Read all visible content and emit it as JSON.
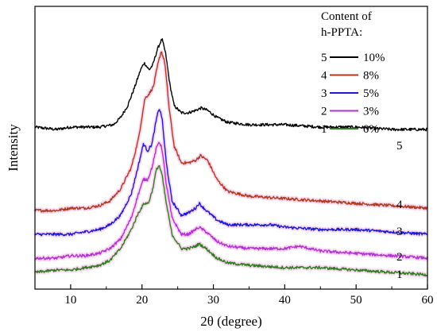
{
  "chart_data": {
    "type": "line",
    "title": "",
    "xlabel": "2θ (degree)",
    "ylabel": "Intensity",
    "xlim": [
      5,
      60
    ],
    "xticks": [
      10,
      20,
      30,
      40,
      50,
      60
    ],
    "xtick_labels": [
      "10",
      "20",
      "30",
      "40",
      "50",
      "60"
    ],
    "yticks_shown": false,
    "grid": false,
    "legend": {
      "position": "top-right",
      "title_lines": [
        "Content of",
        "h-PPTA:"
      ]
    },
    "series": [
      {
        "name": "10%",
        "legend_index": "5",
        "curve_label": "5",
        "color": "#000000",
        "points": [
          [
            5,
            0.62
          ],
          [
            8,
            0.61
          ],
          [
            10,
            0.62
          ],
          [
            12,
            0.62
          ],
          [
            14,
            0.62
          ],
          [
            16,
            0.63
          ],
          [
            17,
            0.66
          ],
          [
            18,
            0.71
          ],
          [
            19,
            0.79
          ],
          [
            19.8,
            0.86
          ],
          [
            20.3,
            0.89
          ],
          [
            21.0,
            0.86
          ],
          [
            21.5,
            0.88
          ],
          [
            22.2,
            0.95
          ],
          [
            22.8,
            0.99
          ],
          [
            23.3,
            0.93
          ],
          [
            23.9,
            0.8
          ],
          [
            24.5,
            0.71
          ],
          [
            25.5,
            0.68
          ],
          [
            26.5,
            0.68
          ],
          [
            27.5,
            0.69
          ],
          [
            28.3,
            0.7
          ],
          [
            29.2,
            0.69
          ],
          [
            30.5,
            0.66
          ],
          [
            32,
            0.64
          ],
          [
            35,
            0.63
          ],
          [
            40,
            0.63
          ],
          [
            45,
            0.62
          ],
          [
            50,
            0.62
          ],
          [
            55,
            0.61
          ],
          [
            60,
            0.61
          ]
        ]
      },
      {
        "name": "8%",
        "legend_index": "4",
        "curve_label": "4",
        "color": "#b23a1f",
        "points": [
          [
            5,
            0.27
          ],
          [
            8,
            0.27
          ],
          [
            10,
            0.28
          ],
          [
            12,
            0.28
          ],
          [
            14,
            0.29
          ],
          [
            15.5,
            0.31
          ],
          [
            17,
            0.36
          ],
          [
            18.5,
            0.45
          ],
          [
            19.5,
            0.57
          ],
          [
            20.4,
            0.74
          ],
          [
            21.0,
            0.76
          ],
          [
            21.6,
            0.79
          ],
          [
            22.2,
            0.88
          ],
          [
            22.7,
            0.94
          ],
          [
            23.2,
            0.89
          ],
          [
            23.8,
            0.7
          ],
          [
            24.5,
            0.54
          ],
          [
            25.5,
            0.47
          ],
          [
            26.5,
            0.47
          ],
          [
            27.5,
            0.48
          ],
          [
            28.2,
            0.5
          ],
          [
            29.2,
            0.48
          ],
          [
            30.5,
            0.4
          ],
          [
            32,
            0.35
          ],
          [
            35,
            0.33
          ],
          [
            40,
            0.32
          ],
          [
            45,
            0.31
          ],
          [
            50,
            0.3
          ],
          [
            55,
            0.29
          ],
          [
            60,
            0.28
          ]
        ]
      },
      {
        "name": "5%",
        "legend_index": "3",
        "curve_label": "3",
        "color": "#1a1ad8",
        "points": [
          [
            5,
            0.17
          ],
          [
            8,
            0.17
          ],
          [
            10,
            0.17
          ],
          [
            12,
            0.18
          ],
          [
            14,
            0.19
          ],
          [
            15.5,
            0.21
          ],
          [
            17,
            0.25
          ],
          [
            18.5,
            0.34
          ],
          [
            19.5,
            0.46
          ],
          [
            20.2,
            0.55
          ],
          [
            20.8,
            0.52
          ],
          [
            21.4,
            0.55
          ],
          [
            22.0,
            0.65
          ],
          [
            22.4,
            0.7
          ],
          [
            22.8,
            0.66
          ],
          [
            23.4,
            0.47
          ],
          [
            24.2,
            0.31
          ],
          [
            25.5,
            0.25
          ],
          [
            26.5,
            0.26
          ],
          [
            27.5,
            0.28
          ],
          [
            28.0,
            0.3
          ],
          [
            29,
            0.27
          ],
          [
            30.5,
            0.23
          ],
          [
            32,
            0.21
          ],
          [
            35,
            0.21
          ],
          [
            38,
            0.21
          ],
          [
            40,
            0.2
          ],
          [
            45,
            0.19
          ],
          [
            50,
            0.19
          ],
          [
            55,
            0.18
          ],
          [
            60,
            0.17
          ]
        ]
      },
      {
        "name": "3%",
        "legend_index": "2",
        "curve_label": "2",
        "color": "#b431d8",
        "points": [
          [
            5,
            0.07
          ],
          [
            8,
            0.07
          ],
          [
            10,
            0.08
          ],
          [
            12,
            0.08
          ],
          [
            14,
            0.09
          ],
          [
            15.5,
            0.11
          ],
          [
            17,
            0.15
          ],
          [
            18.5,
            0.24
          ],
          [
            19.5,
            0.34
          ],
          [
            20.2,
            0.4
          ],
          [
            20.8,
            0.4
          ],
          [
            21.4,
            0.45
          ],
          [
            22.0,
            0.53
          ],
          [
            22.4,
            0.56
          ],
          [
            22.8,
            0.53
          ],
          [
            23.4,
            0.38
          ],
          [
            24.2,
            0.24
          ],
          [
            25.5,
            0.17
          ],
          [
            26.5,
            0.17
          ],
          [
            27.5,
            0.19
          ],
          [
            28.0,
            0.2
          ],
          [
            29,
            0.18
          ],
          [
            30.5,
            0.14
          ],
          [
            32,
            0.12
          ],
          [
            35,
            0.11
          ],
          [
            40,
            0.11
          ],
          [
            42,
            0.12
          ],
          [
            45,
            0.1
          ],
          [
            50,
            0.09
          ],
          [
            55,
            0.08
          ],
          [
            60,
            0.07
          ]
        ]
      },
      {
        "name": "0%",
        "legend_index": "1",
        "curve_label": "1",
        "color": "#2e7d1f",
        "points": [
          [
            5,
            0.01
          ],
          [
            8,
            0.02
          ],
          [
            10,
            0.02
          ],
          [
            12,
            0.03
          ],
          [
            14,
            0.04
          ],
          [
            15.5,
            0.06
          ],
          [
            17,
            0.11
          ],
          [
            18.5,
            0.19
          ],
          [
            19.5,
            0.26
          ],
          [
            20.3,
            0.3
          ],
          [
            20.9,
            0.3
          ],
          [
            21.5,
            0.36
          ],
          [
            22.0,
            0.44
          ],
          [
            22.4,
            0.46
          ],
          [
            22.8,
            0.42
          ],
          [
            23.4,
            0.3
          ],
          [
            24.2,
            0.17
          ],
          [
            25.5,
            0.11
          ],
          [
            26.5,
            0.11
          ],
          [
            27.5,
            0.12
          ],
          [
            28.0,
            0.13
          ],
          [
            29,
            0.11
          ],
          [
            30.5,
            0.07
          ],
          [
            32,
            0.05
          ],
          [
            35,
            0.04
          ],
          [
            40,
            0.03
          ],
          [
            45,
            0.03
          ],
          [
            50,
            0.02
          ],
          [
            55,
            0.01
          ],
          [
            60,
            0.0
          ]
        ]
      }
    ]
  }
}
